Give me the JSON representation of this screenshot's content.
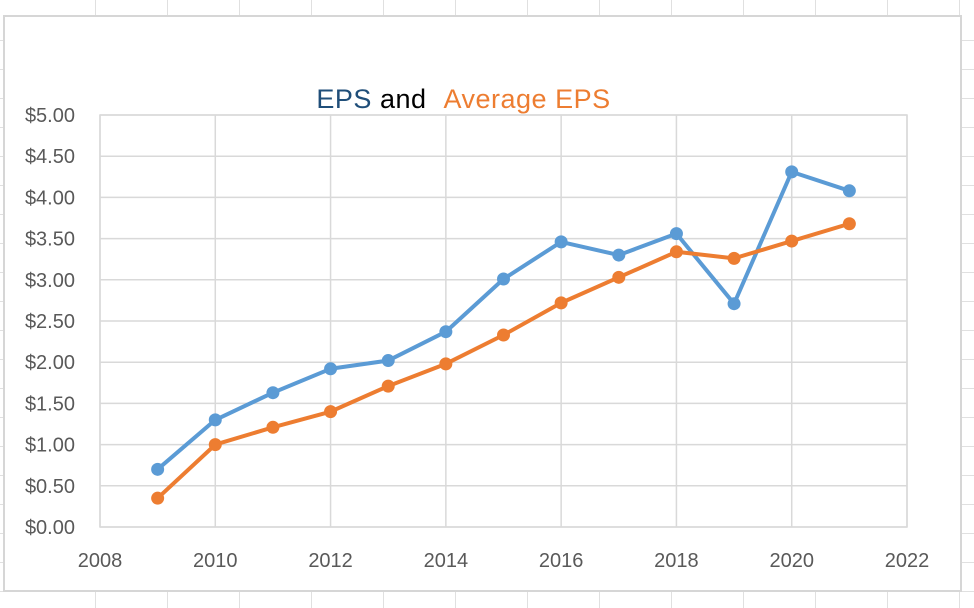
{
  "chart_data": {
    "type": "line",
    "title_plain": "EPS and Average EPS",
    "title_parts": [
      {
        "text": "EPS",
        "color": "#1F4E79"
      },
      {
        "text": " and ",
        "color": "#000000"
      },
      {
        "text": "Average EPS",
        "color": "#ED7D31"
      }
    ],
    "x": [
      2009,
      2010,
      2011,
      2012,
      2013,
      2014,
      2015,
      2016,
      2017,
      2018,
      2019,
      2020,
      2021
    ],
    "series": [
      {
        "name": "EPS",
        "color": "#5B9BD5",
        "values": [
          0.7,
          1.3,
          1.63,
          1.92,
          2.02,
          2.37,
          3.01,
          3.46,
          3.3,
          3.56,
          2.71,
          4.31,
          4.08
        ]
      },
      {
        "name": "Average EPS",
        "color": "#ED7D31",
        "values": [
          0.35,
          1.0,
          1.21,
          1.4,
          1.71,
          1.98,
          2.33,
          2.72,
          3.03,
          3.34,
          3.26,
          3.47,
          3.68
        ]
      }
    ],
    "xlim": [
      2008,
      2022
    ],
    "xtick_step": 2,
    "ylim": [
      0,
      5
    ],
    "ytick_step": 0.5,
    "x_tick_labels": [
      "2008",
      "2010",
      "2012",
      "2014",
      "2016",
      "2018",
      "2020",
      "2022"
    ],
    "y_tick_labels": [
      "$0.00",
      "$0.50",
      "$1.00",
      "$1.50",
      "$2.00",
      "$2.50",
      "$3.00",
      "$3.50",
      "$4.00",
      "$4.50",
      "$5.00"
    ],
    "grid": true,
    "legend": "none",
    "axis_label_color": "#595959",
    "gridline_color": "#D9D9D9",
    "plot_background": "#FFFFFF"
  }
}
